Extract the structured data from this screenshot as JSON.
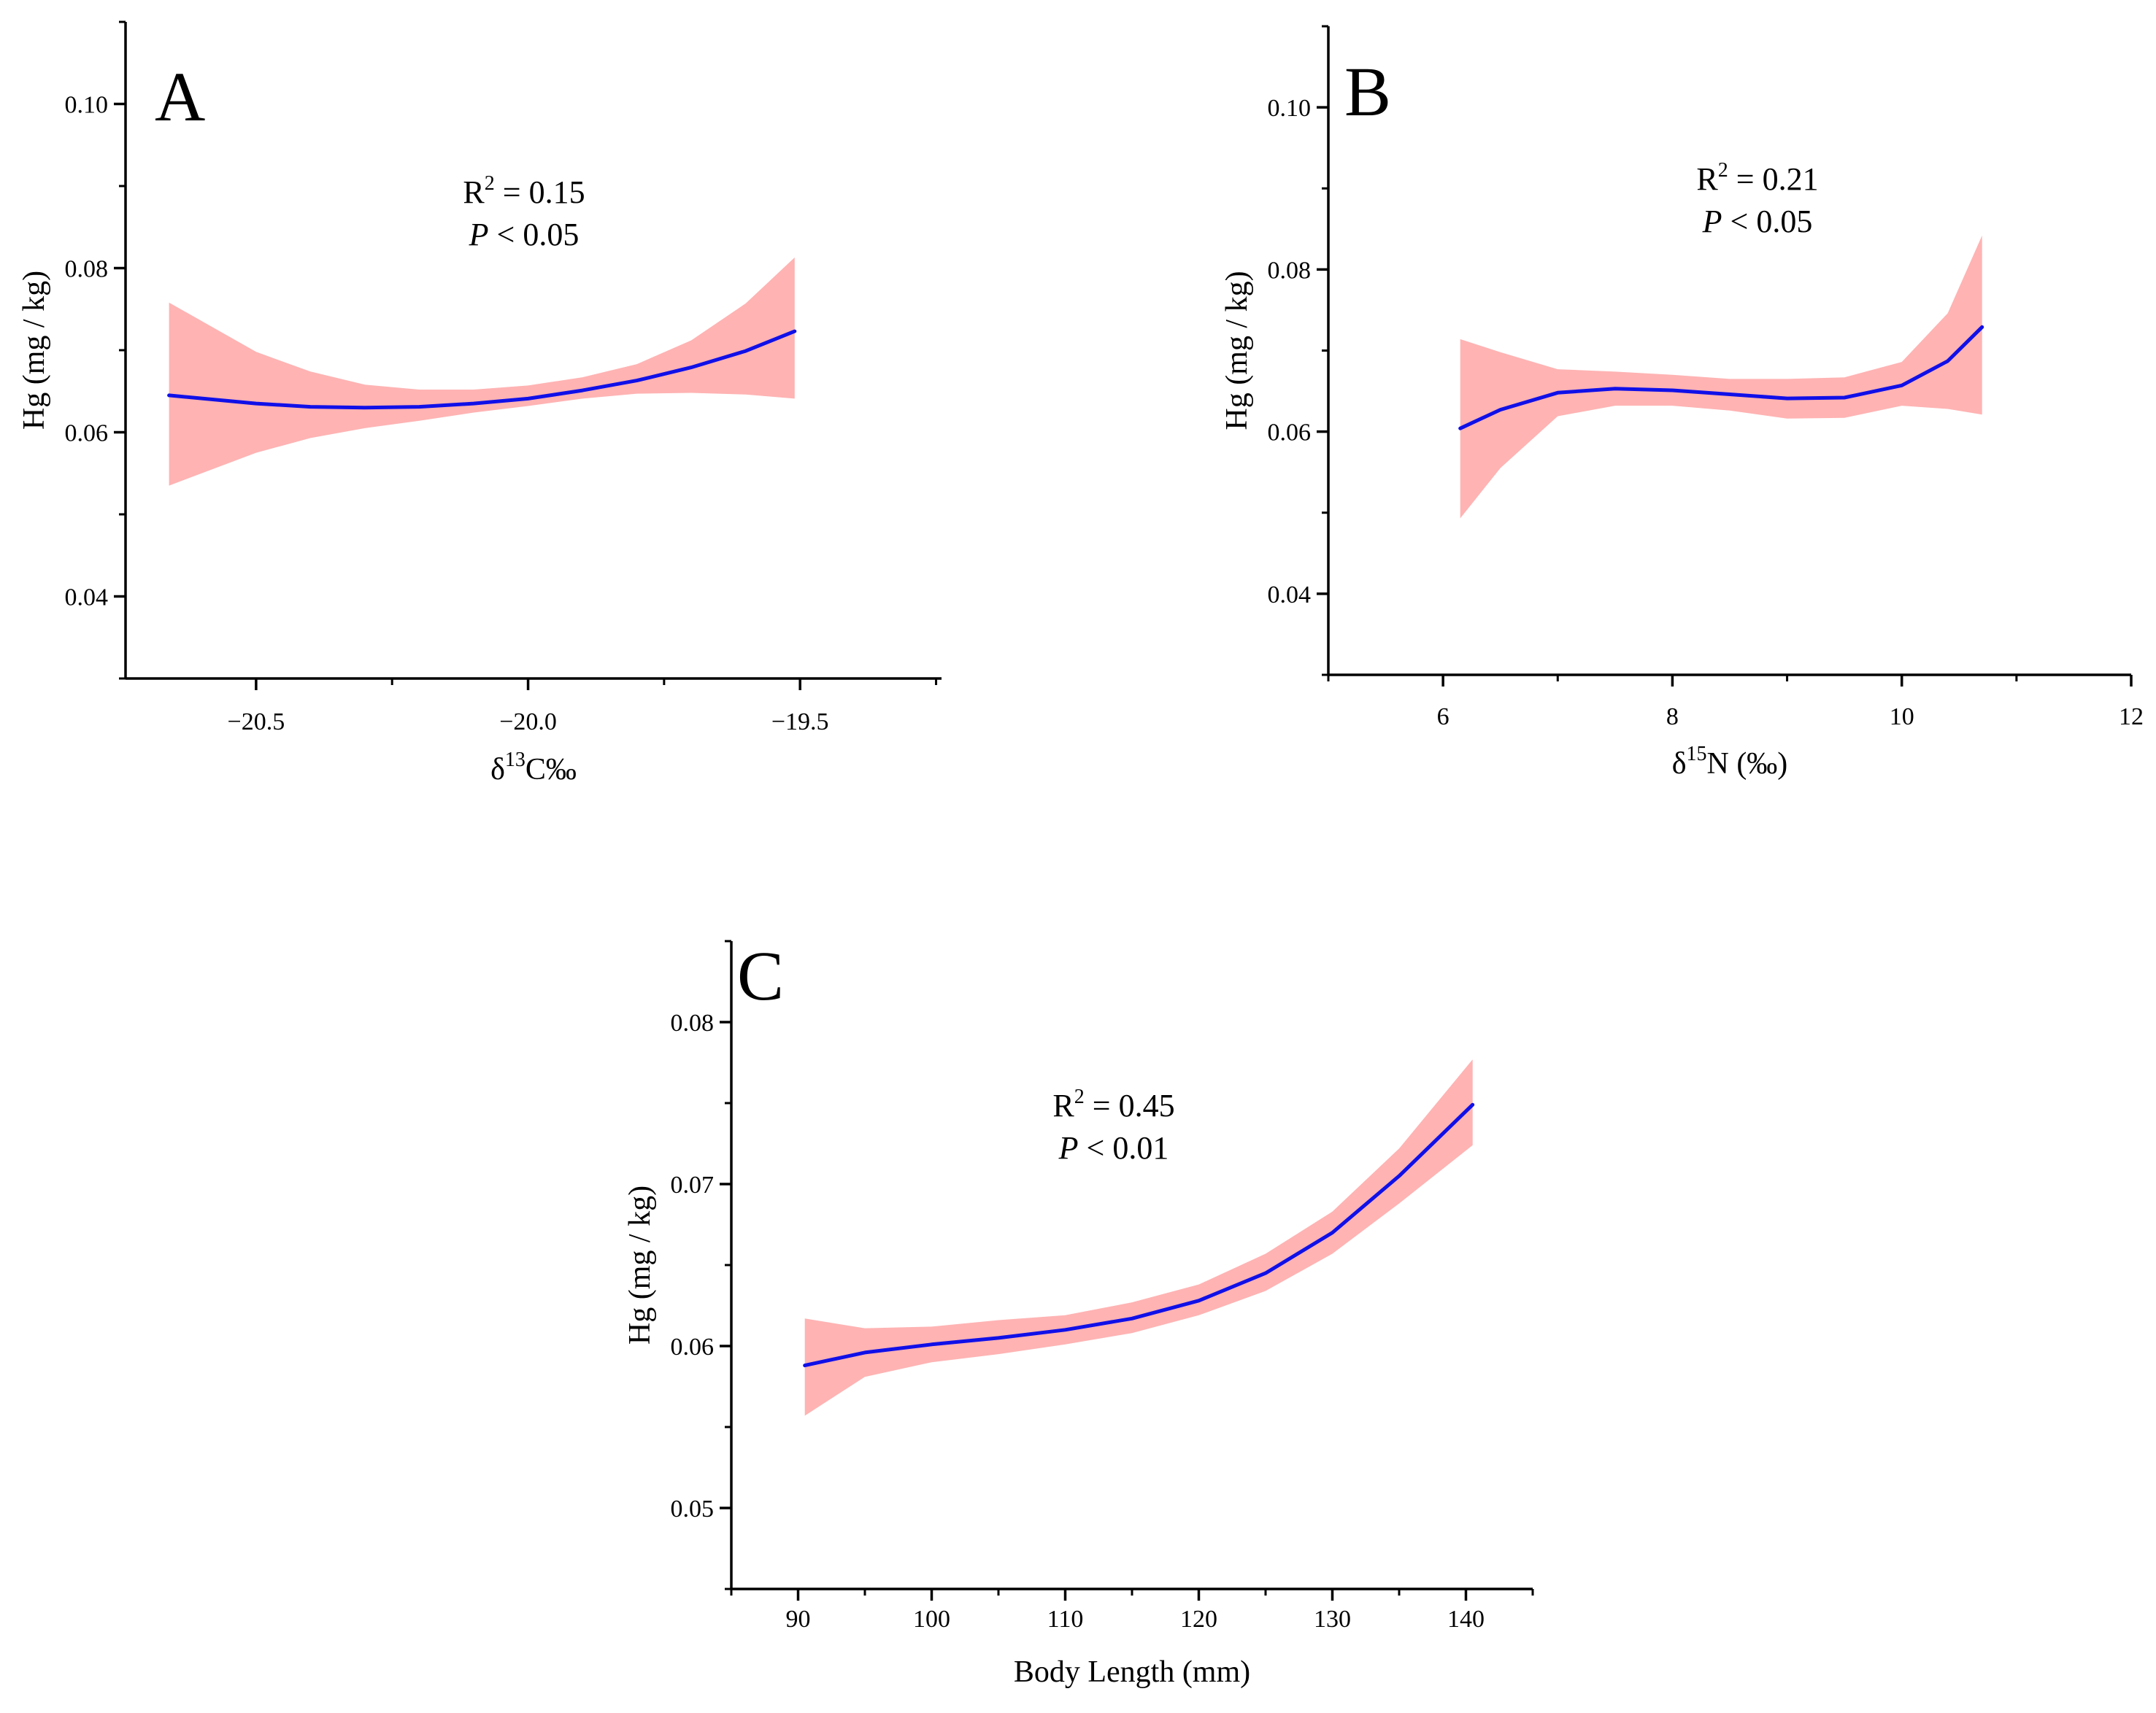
{
  "figure": {
    "colors": {
      "fit_line": "#1010e8",
      "confidence_band": "#ffb3b3",
      "axis": "#000000"
    }
  },
  "chart_data": [
    {
      "panel": "A",
      "type": "line",
      "series_name": "fit",
      "band_name": "95% confidence band",
      "xlabel": {
        "prefix": "δ",
        "sup": "13",
        "suffix": "C‰"
      },
      "ylabel": "Hg (mg / kg)",
      "xlim": [
        -20.74,
        -19.24
      ],
      "ylim": [
        0.03,
        0.11
      ],
      "x_ticks": [
        -20.5,
        -20.0,
        -19.5
      ],
      "x_tick_labels": [
        "−20.5",
        "−20.0",
        "−19.5"
      ],
      "y_ticks": [
        0.04,
        0.06,
        0.08,
        0.1
      ],
      "y_tick_labels": [
        "0.04",
        "0.06",
        "0.08",
        "0.10"
      ],
      "annotation": {
        "r2_prefix": "R",
        "r2_sup": "2",
        "r2_value": " = 0.15",
        "p_italic": "P",
        "p_value": " < 0.05"
      },
      "x": [
        -20.66,
        -20.5,
        -20.4,
        -20.3,
        -20.2,
        -20.1,
        -20.0,
        -19.9,
        -19.8,
        -19.7,
        -19.6,
        -19.51
      ],
      "fit": [
        0.0645,
        0.0635,
        0.0631,
        0.063,
        0.0631,
        0.0635,
        0.0641,
        0.0651,
        0.0663,
        0.0679,
        0.0699,
        0.0723
      ],
      "lower": [
        0.0535,
        0.0575,
        0.0593,
        0.0605,
        0.0614,
        0.0624,
        0.0632,
        0.0641,
        0.0647,
        0.0648,
        0.0646,
        0.0641
      ],
      "upper": [
        0.0758,
        0.0698,
        0.0674,
        0.0658,
        0.0652,
        0.0652,
        0.0657,
        0.0667,
        0.0683,
        0.0712,
        0.0757,
        0.0813
      ]
    },
    {
      "panel": "B",
      "type": "line",
      "series_name": "fit",
      "band_name": "95% confidence band",
      "xlabel": {
        "prefix": "δ",
        "sup": "15",
        "suffix": "N (‰)"
      },
      "ylabel": "Hg (mg / kg)",
      "xlim": [
        5,
        12
      ],
      "ylim": [
        0.03,
        0.11
      ],
      "x_ticks": [
        6,
        8,
        10,
        12
      ],
      "x_tick_labels": [
        "6",
        "8",
        "10",
        "12"
      ],
      "y_ticks": [
        0.04,
        0.06,
        0.08,
        0.1
      ],
      "y_tick_labels": [
        "0.04",
        "0.06",
        "0.08",
        "0.10"
      ],
      "annotation": {
        "r2_prefix": "R",
        "r2_sup": "2",
        "r2_value": " = 0.21",
        "p_italic": "P",
        "p_value": " < 0.05"
      },
      "x": [
        6.15,
        6.5,
        7.0,
        7.5,
        8.0,
        8.5,
        9.0,
        9.5,
        10.0,
        10.4,
        10.7
      ],
      "fit": [
        0.0604,
        0.0627,
        0.0648,
        0.0653,
        0.0651,
        0.0646,
        0.0641,
        0.0642,
        0.0657,
        0.0687,
        0.0729
      ],
      "lower": [
        0.0493,
        0.0555,
        0.0619,
        0.0632,
        0.0632,
        0.0626,
        0.0616,
        0.0617,
        0.0632,
        0.0628,
        0.0621
      ],
      "upper": [
        0.0714,
        0.0698,
        0.0677,
        0.0674,
        0.067,
        0.0665,
        0.0665,
        0.0667,
        0.0686,
        0.0746,
        0.0842
      ]
    },
    {
      "panel": "C",
      "type": "line",
      "series_name": "fit",
      "band_name": "95% confidence band",
      "xlabel": {
        "prefix": "Body Length (mm)",
        "sup": "",
        "suffix": ""
      },
      "ylabel": "Hg (mg / kg)",
      "xlim": [
        85,
        145
      ],
      "ylim": [
        0.045,
        0.085
      ],
      "x_ticks": [
        90,
        100,
        110,
        120,
        130,
        140
      ],
      "x_tick_labels": [
        "90",
        "100",
        "110",
        "120",
        "130",
        "140"
      ],
      "y_ticks": [
        0.05,
        0.06,
        0.07,
        0.08
      ],
      "y_tick_labels": [
        "0.05",
        "0.06",
        "0.07",
        "0.08"
      ],
      "annotation": {
        "r2_prefix": "R",
        "r2_sup": "2",
        "r2_value": " = 0.45",
        "p_italic": "P",
        "p_value": " < 0.01"
      },
      "x": [
        90.5,
        95,
        100,
        105,
        110,
        115,
        120,
        125,
        130,
        135,
        140.5
      ],
      "fit": [
        0.0588,
        0.0596,
        0.0601,
        0.0605,
        0.061,
        0.0617,
        0.0628,
        0.0645,
        0.067,
        0.0705,
        0.0749
      ],
      "lower": [
        0.0557,
        0.0581,
        0.059,
        0.0595,
        0.0601,
        0.0608,
        0.0619,
        0.0634,
        0.0657,
        0.0688,
        0.0724
      ],
      "upper": [
        0.0617,
        0.0611,
        0.0612,
        0.0616,
        0.0619,
        0.0627,
        0.0638,
        0.0657,
        0.0683,
        0.0722,
        0.0777
      ]
    }
  ]
}
